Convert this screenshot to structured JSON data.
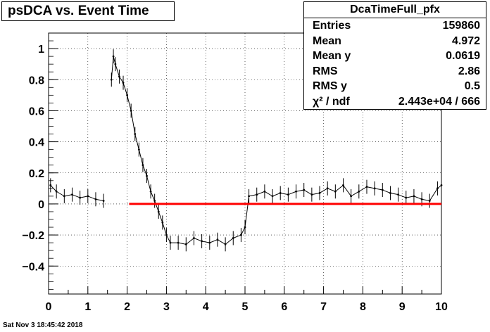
{
  "window": {
    "title": "psDCA vs. Event Time",
    "timestamp": "Sat Nov  3 18:45:42 2018"
  },
  "stats": {
    "name": "DcaTimeFull_pfx",
    "rows": [
      {
        "key": "Entries",
        "value": "159860"
      },
      {
        "key": "Mean",
        "value": "4.972"
      },
      {
        "key": "Mean y",
        "value": "0.0619"
      },
      {
        "key": "RMS",
        "value": "2.86"
      },
      {
        "key": "RMS y",
        "value": "0.5"
      },
      {
        "key": "χ² / ndf",
        "value": "2.443e+04 / 666"
      }
    ]
  },
  "chart_data": {
    "type": "line",
    "title": "psDCA vs. Event Time",
    "xlabel": "",
    "ylabel": "",
    "xlim": [
      0,
      10
    ],
    "ylim": [
      -0.58,
      1.1
    ],
    "x_ticks": [
      0,
      1,
      2,
      3,
      4,
      5,
      6,
      7,
      8,
      9,
      10
    ],
    "y_ticks": [
      -0.4,
      -0.2,
      0,
      0.2,
      0.4,
      0.6,
      0.8,
      1
    ],
    "y_tick_labels": [
      "−0.4",
      "−0.2",
      "0",
      "0.2",
      "0.4",
      "0.6",
      "0.8",
      "1"
    ],
    "grid": true,
    "series": [
      {
        "color": "#000000",
        "style": "profile-points-with-error-bars",
        "x": [
          0.05,
          0.2,
          0.4,
          0.6,
          0.8,
          1.0,
          1.2,
          1.4,
          1.5,
          1.6,
          1.65,
          1.7,
          1.8,
          1.9,
          2.0,
          2.1,
          2.2,
          2.3,
          2.4,
          2.5,
          2.6,
          2.7,
          2.8,
          2.9,
          3.0,
          3.1,
          3.3,
          3.5,
          3.7,
          3.9,
          4.1,
          4.3,
          4.5,
          4.7,
          4.9,
          5.0,
          5.1,
          5.3,
          5.5,
          5.7,
          5.9,
          6.1,
          6.3,
          6.5,
          6.7,
          6.9,
          7.1,
          7.3,
          7.5,
          7.7,
          7.9,
          8.1,
          8.3,
          8.5,
          8.7,
          8.9,
          9.1,
          9.3,
          9.5,
          9.7,
          9.9,
          10.0
        ],
        "y": [
          0.12,
          0.08,
          0.05,
          0.06,
          0.04,
          0.05,
          0.03,
          0.02,
          null,
          0.8,
          0.95,
          0.9,
          0.82,
          0.78,
          0.7,
          0.6,
          0.45,
          0.35,
          0.25,
          0.18,
          0.08,
          0.02,
          -0.05,
          -0.12,
          -0.2,
          -0.25,
          -0.25,
          -0.26,
          -0.22,
          -0.24,
          -0.25,
          -0.23,
          -0.26,
          -0.22,
          -0.2,
          -0.15,
          0.05,
          0.06,
          0.08,
          0.05,
          0.07,
          0.06,
          0.08,
          0.09,
          0.06,
          0.07,
          0.1,
          0.08,
          0.12,
          0.05,
          0.08,
          0.11,
          0.1,
          0.09,
          0.07,
          0.06,
          0.04,
          0.05,
          0.03,
          0.02,
          0.1,
          0.12
        ]
      },
      {
        "color": "#ff0000",
        "style": "fit-line",
        "x": [
          2.05,
          10.0
        ],
        "y": [
          0.0,
          0.0
        ]
      }
    ]
  }
}
